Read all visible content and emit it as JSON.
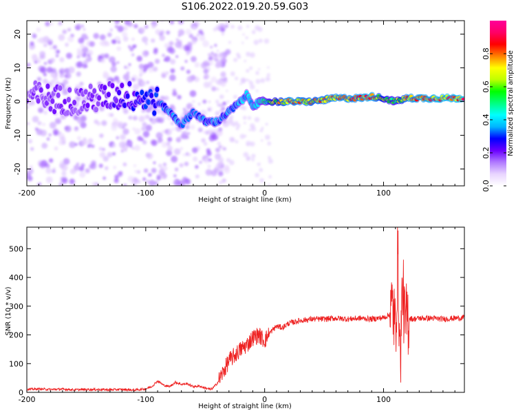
{
  "title": "S106.2022.019.20.59.G03",
  "chart_data": [
    {
      "type": "heatmap",
      "xlabel": "Height of straight line (km)",
      "ylabel": "Frequency (Hz)",
      "xlim": [
        -200,
        168
      ],
      "ylim": [
        -25,
        24
      ],
      "xticks": [
        -200,
        -100,
        0,
        100
      ],
      "yticks": [
        -20,
        -10,
        0,
        10,
        20
      ],
      "colorbar": {
        "label": "Normalized spectral amplitude",
        "range": [
          0,
          1
        ],
        "ticks": [
          0.0,
          0.2,
          0.4,
          0.6,
          0.8
        ],
        "colors": [
          "#ffffff",
          "#e8d4ff",
          "#b07aff",
          "#6a00ff",
          "#0000ff",
          "#00b4ff",
          "#00ffff",
          "#00ff80",
          "#00ff00",
          "#bfff00",
          "#ffff00",
          "#ff8000",
          "#ff0000",
          "#ff0066",
          "#ff0099"
        ]
      },
      "ridge": [
        {
          "x": -200,
          "y": 2,
          "v": 0.18
        },
        {
          "x": -180,
          "y": 1,
          "v": 0.2
        },
        {
          "x": -160,
          "y": 0,
          "v": 0.2
        },
        {
          "x": -140,
          "y": 1,
          "v": 0.2
        },
        {
          "x": -120,
          "y": 2,
          "v": 0.25
        },
        {
          "x": -100,
          "y": 1,
          "v": 0.3
        },
        {
          "x": -90,
          "y": 0,
          "v": 0.32
        },
        {
          "x": -80,
          "y": -3,
          "v": 0.35
        },
        {
          "x": -70,
          "y": -7,
          "v": 0.35
        },
        {
          "x": -60,
          "y": -3,
          "v": 0.35
        },
        {
          "x": -50,
          "y": -6,
          "v": 0.35
        },
        {
          "x": -40,
          "y": -6,
          "v": 0.35
        },
        {
          "x": -30,
          "y": -3,
          "v": 0.35
        },
        {
          "x": -20,
          "y": 0,
          "v": 0.4
        },
        {
          "x": -15,
          "y": 2,
          "v": 0.4
        },
        {
          "x": -10,
          "y": -1,
          "v": 0.45
        },
        {
          "x": 0,
          "y": 0,
          "v": 0.5
        },
        {
          "x": 5,
          "y": 0,
          "v": 0.65
        },
        {
          "x": 20,
          "y": 0,
          "v": 0.85
        },
        {
          "x": 40,
          "y": 0,
          "v": 0.8
        },
        {
          "x": 60,
          "y": 1,
          "v": 0.85
        },
        {
          "x": 80,
          "y": 1,
          "v": 0.85
        },
        {
          "x": 90,
          "y": 1.5,
          "v": 0.88
        },
        {
          "x": 100,
          "y": 1,
          "v": 0.7
        },
        {
          "x": 110,
          "y": 0,
          "v": 0.6
        },
        {
          "x": 120,
          "y": 1,
          "v": 0.85
        },
        {
          "x": 140,
          "y": 1,
          "v": 0.88
        },
        {
          "x": 168,
          "y": 1,
          "v": 0.9
        }
      ]
    },
    {
      "type": "line",
      "xlabel": "Height of straight line (km)",
      "ylabel": "SNR (10 * v/v)",
      "xlim": [
        -200,
        168
      ],
      "ylim": [
        0,
        575
      ],
      "xticks": [
        -200,
        -100,
        0,
        100
      ],
      "yticks": [
        0,
        100,
        200,
        300,
        400,
        500
      ],
      "color": "#ee2222",
      "series": [
        {
          "x": [
            -200,
            -190,
            -180,
            -170,
            -160,
            -150,
            -140,
            -130,
            -120,
            -110,
            -100,
            -95,
            -90,
            -85,
            -80,
            -75,
            -70,
            -65,
            -60,
            -55,
            -50,
            -45,
            -40,
            -35,
            -30,
            -25,
            -20,
            -15,
            -10,
            -5,
            0,
            5,
            10,
            15,
            20,
            25,
            30,
            40,
            50,
            60,
            70,
            80,
            90,
            100,
            105,
            108,
            110,
            112,
            114,
            116,
            118,
            120,
            125,
            130,
            140,
            150,
            160,
            168
          ],
          "y": [
            10,
            12,
            10,
            11,
            9,
            10,
            10,
            9,
            10,
            8,
            12,
            20,
            40,
            25,
            20,
            35,
            28,
            30,
            20,
            22,
            15,
            10,
            30,
            70,
            110,
            130,
            150,
            165,
            190,
            200,
            180,
            210,
            230,
            225,
            240,
            245,
            250,
            255,
            255,
            258,
            255,
            258,
            255,
            260,
            270,
            300,
            200,
            480,
            100,
            380,
            230,
            260,
            255,
            258,
            258,
            255,
            258,
            260
          ]
        }
      ]
    }
  ]
}
